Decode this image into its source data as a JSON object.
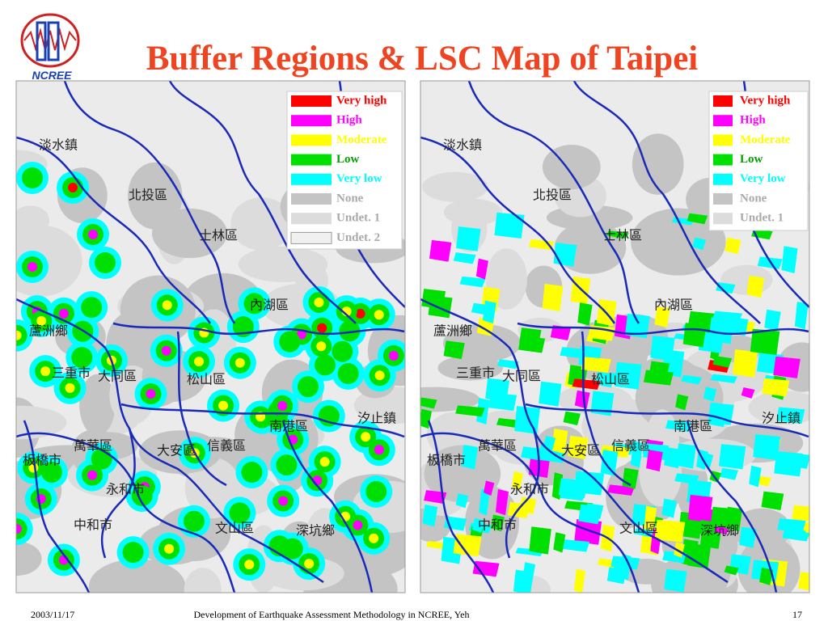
{
  "header": {
    "title": "Buffer Regions & LSC Map of Taipei",
    "logo_text": "NCREE"
  },
  "maps": [
    {
      "labels": [
        "淡水鎮",
        "北投區",
        "士林區",
        "內湖區",
        "蘆洲鄉",
        "三重市",
        "大同區",
        "松山區",
        "南港區",
        "汐止鎮",
        "萬華區",
        "大安區",
        "信義區",
        "板橋市",
        "永和市",
        "中和市",
        "文山區",
        "深坑鄉"
      ],
      "legend": [
        {
          "label": "Very high",
          "color": "#ff0000"
        },
        {
          "label": "High",
          "color": "#ff00ff"
        },
        {
          "label": "Moderate",
          "color": "#ffff00"
        },
        {
          "label": "Low",
          "color": "#00e000"
        },
        {
          "label": "Very low",
          "color": "#00ffff"
        },
        {
          "label": "None",
          "color": "#c4c4c4"
        },
        {
          "label": "Undet. 1",
          "color": "#dcdcdc"
        },
        {
          "label": "Undet. 2",
          "color": "#f0f0f0"
        }
      ]
    },
    {
      "labels": [
        "淡水鎮",
        "北投區",
        "士林區",
        "內湖區",
        "蘆洲鄉",
        "三重市",
        "大同區",
        "松山區",
        "南港區",
        "汐止鎮",
        "萬華區",
        "大安區",
        "信義區",
        "板橋市",
        "永和市",
        "中和市",
        "文山區",
        "深坑鄉"
      ],
      "legend": [
        {
          "label": "Very high",
          "color": "#ff0000"
        },
        {
          "label": "High",
          "color": "#ff00ff"
        },
        {
          "label": "Moderate",
          "color": "#ffff00"
        },
        {
          "label": "Low",
          "color": "#00e000"
        },
        {
          "label": "Very low",
          "color": "#00ffff"
        },
        {
          "label": "None",
          "color": "#c4c4c4"
        },
        {
          "label": "Undet. 1",
          "color": "#dcdcdc"
        }
      ]
    }
  ],
  "footer": {
    "date": "2003/11/17",
    "text": "Development of Earthquake Assessment Methodology in NCREE, Yeh",
    "page": "17"
  }
}
